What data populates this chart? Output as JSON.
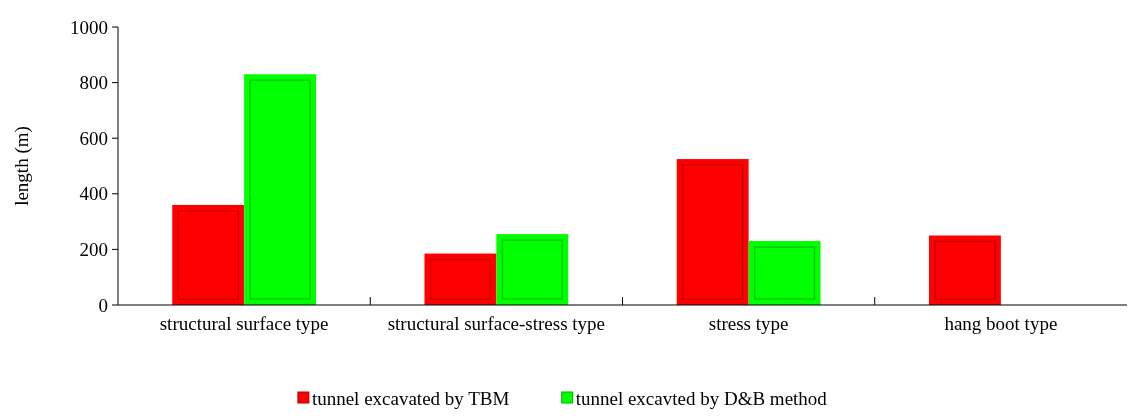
{
  "chart_data": {
    "type": "bar",
    "ylabel": "length (m)",
    "categories": [
      "structural surface type",
      "structural surface-stress type",
      "stress type",
      "hang boot type"
    ],
    "series": [
      {
        "name": "tunnel excavated by TBM",
        "color": "#ff0000",
        "values": [
          360,
          185,
          525,
          250
        ]
      },
      {
        "name": "tunnel excavted by D&B method",
        "color": "#00ff00",
        "values": [
          830,
          255,
          230,
          null
        ]
      }
    ],
    "ylim": [
      0,
      1000
    ],
    "yticks": [
      0,
      200,
      400,
      600,
      800,
      1000
    ],
    "legend": "bottom"
  }
}
